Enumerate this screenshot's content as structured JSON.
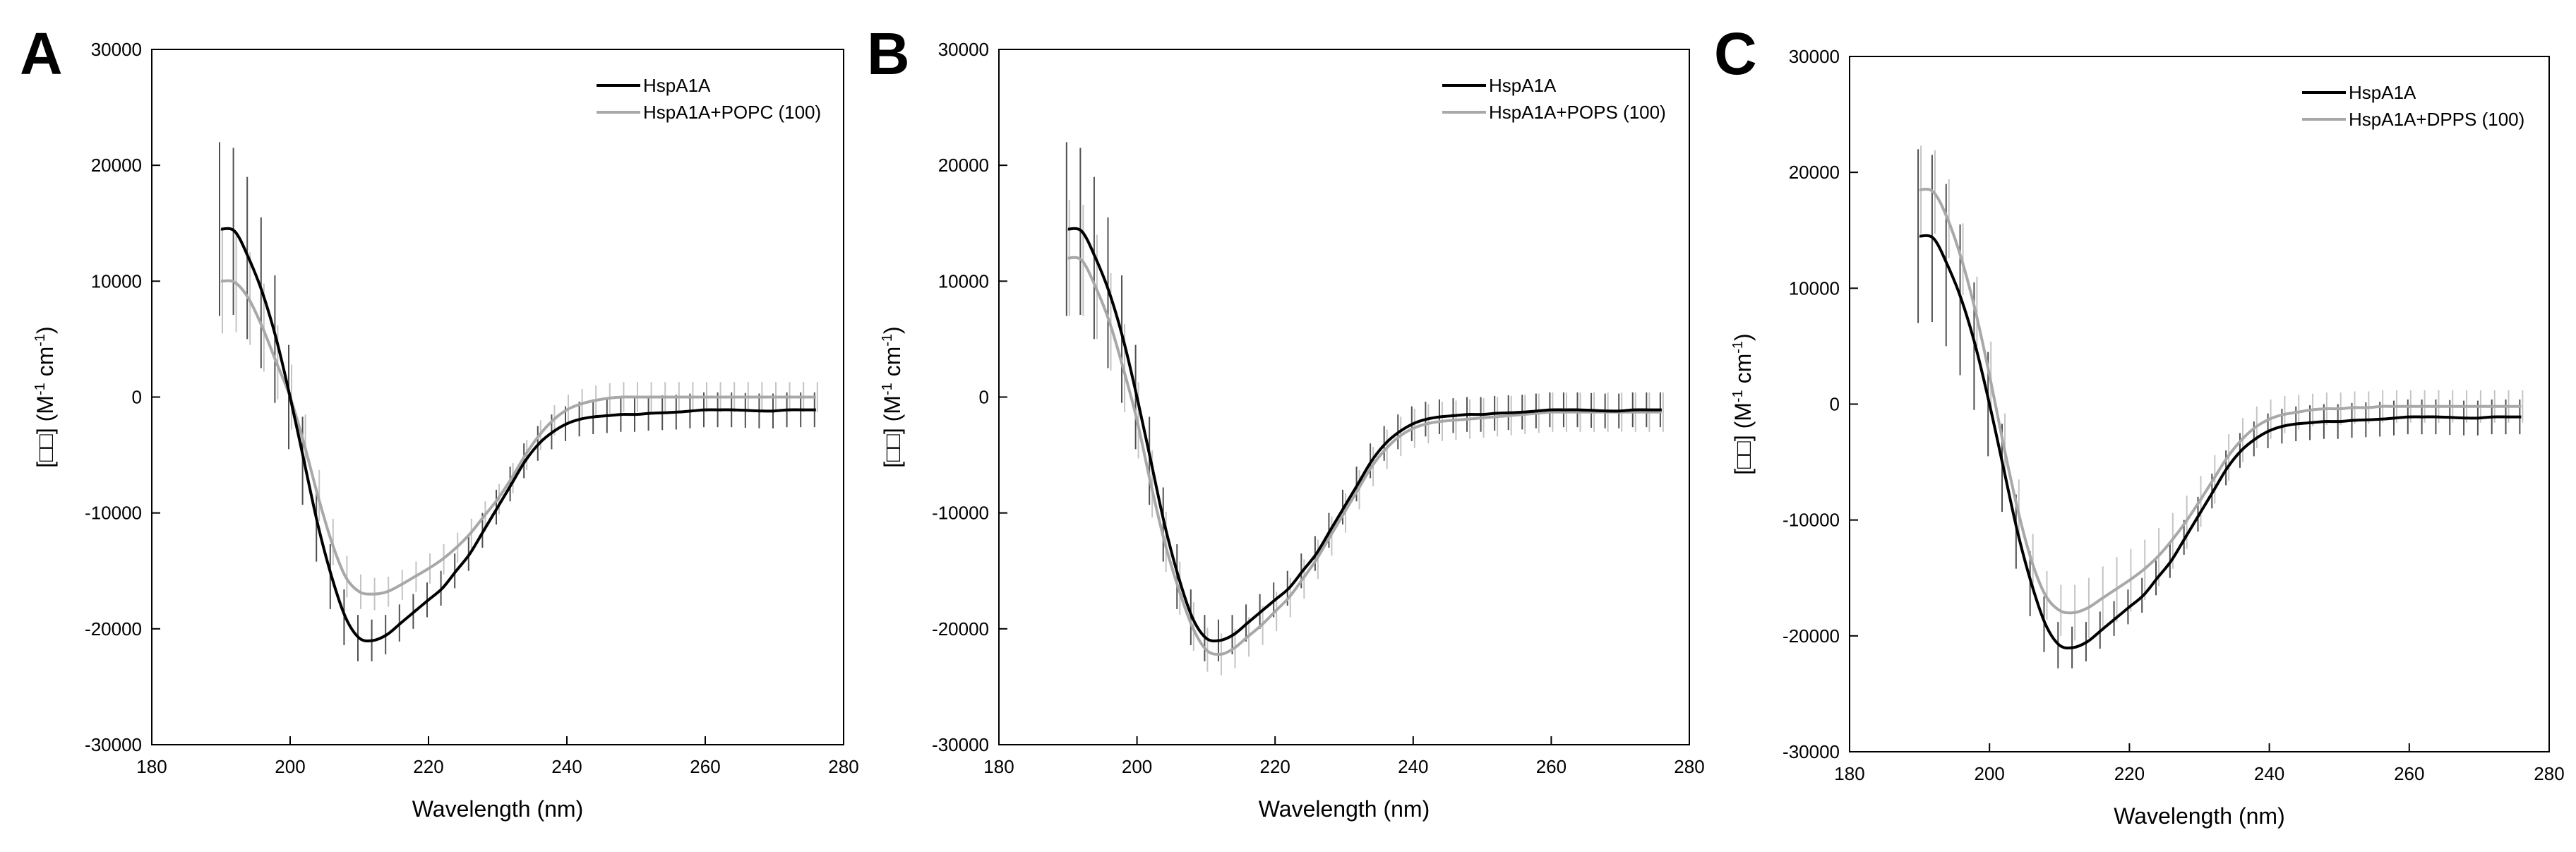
{
  "figure": {
    "colors": {
      "series1": "#000000",
      "series2": "#a8a8a8",
      "errorbar1": "#505050",
      "errorbar2": "#c4c4c4"
    }
  },
  "chart_data": [
    {
      "panel_letter": "A",
      "type": "line",
      "title": "",
      "xlabel": "Wavelength (nm)",
      "ylabel": "[□□] (M-1 cm-1)",
      "ylabel_parts": {
        "prefix": "[□□] (M",
        "sup1": "-1",
        "mid": " cm",
        "sup2": "-1",
        "suffix": ")"
      },
      "xlim": [
        180,
        280
      ],
      "ylim": [
        -30000,
        30000
      ],
      "xticks": [
        180,
        200,
        220,
        240,
        260,
        280
      ],
      "yticks": [
        -30000,
        -20000,
        -10000,
        0,
        10000,
        20000,
        30000
      ],
      "xtick_labels": [
        "180",
        "200",
        "220",
        "240",
        "260",
        "280"
      ],
      "ytick_labels": [
        "-30000",
        "-20000",
        "-10000",
        "0",
        "10000",
        "20000",
        "30000"
      ],
      "grid": false,
      "legend_position": "top-right",
      "x": [
        190,
        192,
        194,
        196,
        198,
        200,
        202,
        204,
        206,
        208,
        210,
        212,
        214,
        216,
        218,
        220,
        222,
        224,
        226,
        228,
        230,
        232,
        234,
        236,
        238,
        240,
        242,
        244,
        246,
        248,
        250,
        252,
        254,
        256,
        258,
        260,
        262,
        264,
        266,
        268,
        270,
        272,
        274,
        276
      ],
      "series": [
        {
          "name": "HspA1A",
          "values": [
            14500,
            14300,
            12000,
            9000,
            5000,
            0,
            -5500,
            -11000,
            -15500,
            -19000,
            -20800,
            -21000,
            -20500,
            -19500,
            -18500,
            -17500,
            -16500,
            -15000,
            -13500,
            -11500,
            -9500,
            -7500,
            -5500,
            -4000,
            -3000,
            -2300,
            -1900,
            -1700,
            -1600,
            -1500,
            -1500,
            -1400,
            -1350,
            -1300,
            -1200,
            -1100,
            -1100,
            -1100,
            -1150,
            -1200,
            -1200,
            -1100,
            -1100,
            -1100
          ],
          "errors": [
            7500,
            7200,
            7000,
            6500,
            5500,
            4500,
            3800,
            3200,
            2800,
            2400,
            2000,
            1800,
            1700,
            1600,
            1500,
            1500,
            1500,
            1500,
            1500,
            1500,
            1500,
            1500,
            1500,
            1500,
            1500,
            1500,
            1500,
            1500,
            1500,
            1500,
            1500,
            1500,
            1500,
            1500,
            1500,
            1500,
            1500,
            1500,
            1500,
            1500,
            1500,
            1500,
            1500,
            1500
          ]
        },
        {
          "name": "HspA1A+POPC (100)",
          "values": [
            10000,
            9900,
            8500,
            6000,
            3000,
            0,
            -4000,
            -8500,
            -12500,
            -15500,
            -16800,
            -17000,
            -16800,
            -16200,
            -15500,
            -14800,
            -14000,
            -13000,
            -11800,
            -10300,
            -8800,
            -7000,
            -5000,
            -3300,
            -2000,
            -1100,
            -600,
            -300,
            -100,
            0,
            0,
            0,
            0,
            0,
            0,
            0,
            0,
            0,
            0,
            0,
            0,
            0,
            0,
            0
          ],
          "errors": [
            4500,
            4300,
            4000,
            3800,
            3200,
            2800,
            2500,
            2200,
            2000,
            1800,
            1500,
            1400,
            1300,
            1300,
            1300,
            1300,
            1300,
            1300,
            1300,
            1300,
            1300,
            1300,
            1300,
            1300,
            1300,
            1300,
            1300,
            1300,
            1300,
            1300,
            1300,
            1300,
            1300,
            1300,
            1300,
            1300,
            1300,
            1300,
            1300,
            1300,
            1300,
            1300,
            1300,
            1300
          ]
        }
      ]
    },
    {
      "panel_letter": "B",
      "type": "line",
      "title": "",
      "xlabel": "Wavelength (nm)",
      "ylabel": "[□□] (M-1 cm-1)",
      "ylabel_parts": {
        "prefix": "[□□] (M",
        "sup1": "-1",
        "mid": " cm",
        "sup2": "-1",
        "suffix": ")"
      },
      "xlim": [
        180,
        280
      ],
      "ylim": [
        -30000,
        30000
      ],
      "xticks": [
        180,
        200,
        220,
        240,
        260,
        280
      ],
      "yticks": [
        -30000,
        -20000,
        -10000,
        0,
        10000,
        20000,
        30000
      ],
      "xtick_labels": [
        "180",
        "200",
        "220",
        "240",
        "260",
        "280"
      ],
      "ytick_labels": [
        "-30000",
        "-20000",
        "-10000",
        "0",
        "10000",
        "20000",
        "30000"
      ],
      "grid": false,
      "legend_position": "top-right",
      "x": [
        190,
        192,
        194,
        196,
        198,
        200,
        202,
        204,
        206,
        208,
        210,
        212,
        214,
        216,
        218,
        220,
        222,
        224,
        226,
        228,
        230,
        232,
        234,
        236,
        238,
        240,
        242,
        244,
        246,
        248,
        250,
        252,
        254,
        256,
        258,
        260,
        262,
        264,
        266,
        268,
        270,
        272,
        274,
        276
      ],
      "series": [
        {
          "name": "HspA1A",
          "values": [
            14500,
            14300,
            12000,
            9000,
            5000,
            0,
            -5500,
            -11000,
            -15500,
            -19000,
            -20800,
            -21000,
            -20500,
            -19500,
            -18500,
            -17500,
            -16500,
            -15000,
            -13500,
            -11500,
            -9500,
            -7500,
            -5500,
            -4000,
            -3000,
            -2300,
            -1900,
            -1700,
            -1600,
            -1500,
            -1500,
            -1400,
            -1350,
            -1300,
            -1200,
            -1100,
            -1100,
            -1100,
            -1150,
            -1200,
            -1200,
            -1100,
            -1100,
            -1100
          ],
          "errors": [
            7500,
            7200,
            7000,
            6500,
            5500,
            4500,
            3800,
            3200,
            2800,
            2400,
            2000,
            1800,
            1700,
            1600,
            1500,
            1500,
            1500,
            1500,
            1500,
            1500,
            1500,
            1500,
            1500,
            1500,
            1500,
            1500,
            1500,
            1500,
            1500,
            1500,
            1500,
            1500,
            1500,
            1500,
            1500,
            1500,
            1500,
            1500,
            1500,
            1500,
            1500,
            1500,
            1500,
            1500
          ]
        },
        {
          "name": "HspA1A+POPS (100)",
          "values": [
            12000,
            11800,
            9500,
            6500,
            2500,
            -2000,
            -7500,
            -12500,
            -16500,
            -19800,
            -21800,
            -22200,
            -21700,
            -20700,
            -19700,
            -18500,
            -17300,
            -15700,
            -14000,
            -12000,
            -10000,
            -8000,
            -6000,
            -4500,
            -3400,
            -2700,
            -2300,
            -2100,
            -2000,
            -1900,
            -1800,
            -1700,
            -1600,
            -1500,
            -1400,
            -1300,
            -1300,
            -1300,
            -1300,
            -1300,
            -1300,
            -1300,
            -1300,
            -1300
          ],
          "errors": [
            5000,
            4800,
            4500,
            4200,
            3800,
            3300,
            2900,
            2600,
            2300,
            2100,
            1900,
            1800,
            1700,
            1700,
            1700,
            1700,
            1700,
            1700,
            1700,
            1700,
            1700,
            1700,
            1700,
            1700,
            1700,
            1700,
            1700,
            1700,
            1700,
            1700,
            1700,
            1700,
            1700,
            1700,
            1700,
            1700,
            1700,
            1700,
            1700,
            1700,
            1700,
            1700,
            1700,
            1700
          ]
        }
      ]
    },
    {
      "panel_letter": "C",
      "type": "line",
      "title": "",
      "xlabel": "Wavelength (nm)",
      "ylabel": "[□□] (M-1 cm-1)",
      "ylabel_parts": {
        "prefix": "[□□] (M",
        "sup1": "-1",
        "mid": " cm",
        "sup2": "-1",
        "suffix": ")"
      },
      "xlim": [
        180,
        280
      ],
      "ylim": [
        -30000,
        30000
      ],
      "xticks": [
        180,
        200,
        220,
        240,
        260,
        280
      ],
      "yticks": [
        -30000,
        -20000,
        -10000,
        0,
        10000,
        20000,
        30000
      ],
      "xtick_labels": [
        "180",
        "200",
        "220",
        "240",
        "260",
        "280"
      ],
      "ytick_labels": [
        "-30000",
        "-20000",
        "-10000",
        "0",
        "10000",
        "20000",
        "30000"
      ],
      "grid": false,
      "legend_position": "top-right",
      "x": [
        190,
        192,
        194,
        196,
        198,
        200,
        202,
        204,
        206,
        208,
        210,
        212,
        214,
        216,
        218,
        220,
        222,
        224,
        226,
        228,
        230,
        232,
        234,
        236,
        238,
        240,
        242,
        244,
        246,
        248,
        250,
        252,
        254,
        256,
        258,
        260,
        262,
        264,
        266,
        268,
        270,
        272,
        274,
        276
      ],
      "series": [
        {
          "name": "HspA1A",
          "values": [
            14500,
            14300,
            12000,
            9000,
            5000,
            0,
            -5500,
            -11000,
            -15500,
            -19000,
            -20800,
            -21000,
            -20500,
            -19500,
            -18500,
            -17500,
            -16500,
            -15000,
            -13500,
            -11500,
            -9500,
            -7500,
            -5500,
            -4000,
            -3000,
            -2300,
            -1900,
            -1700,
            -1600,
            -1500,
            -1500,
            -1400,
            -1350,
            -1300,
            -1200,
            -1100,
            -1100,
            -1100,
            -1150,
            -1200,
            -1200,
            -1100,
            -1100,
            -1100
          ],
          "errors": [
            7500,
            7200,
            7000,
            6500,
            5500,
            4500,
            3800,
            3200,
            2800,
            2400,
            2000,
            1800,
            1700,
            1600,
            1500,
            1500,
            1500,
            1500,
            1500,
            1500,
            1500,
            1500,
            1500,
            1500,
            1500,
            1500,
            1500,
            1500,
            1500,
            1500,
            1500,
            1500,
            1500,
            1500,
            1500,
            1500,
            1500,
            1500,
            1500,
            1500,
            1500,
            1500,
            1500,
            1500
          ]
        },
        {
          "name": "HspA1A+DPPS (100)",
          "values": [
            18500,
            18300,
            16000,
            12500,
            8000,
            2500,
            -3500,
            -9000,
            -13500,
            -16500,
            -17800,
            -18000,
            -17600,
            -16800,
            -16000,
            -15200,
            -14300,
            -13200,
            -11800,
            -10200,
            -8400,
            -6500,
            -4600,
            -3100,
            -2000,
            -1300,
            -900,
            -700,
            -500,
            -400,
            -400,
            -300,
            -300,
            -200,
            -200,
            -200,
            -200,
            -200,
            -200,
            -200,
            -200,
            -200,
            -200,
            -200
          ],
          "errors": [
            3800,
            3600,
            3400,
            3100,
            3000,
            2900,
            2700,
            2500,
            2300,
            2100,
            2200,
            2400,
            2600,
            2800,
            2800,
            2700,
            2600,
            2500,
            2400,
            2300,
            2200,
            2100,
            2000,
            1900,
            1800,
            1700,
            1600,
            1500,
            1400,
            1400,
            1400,
            1400,
            1400,
            1400,
            1400,
            1400,
            1400,
            1400,
            1400,
            1400,
            1400,
            1400,
            1400,
            1400
          ]
        }
      ]
    }
  ]
}
